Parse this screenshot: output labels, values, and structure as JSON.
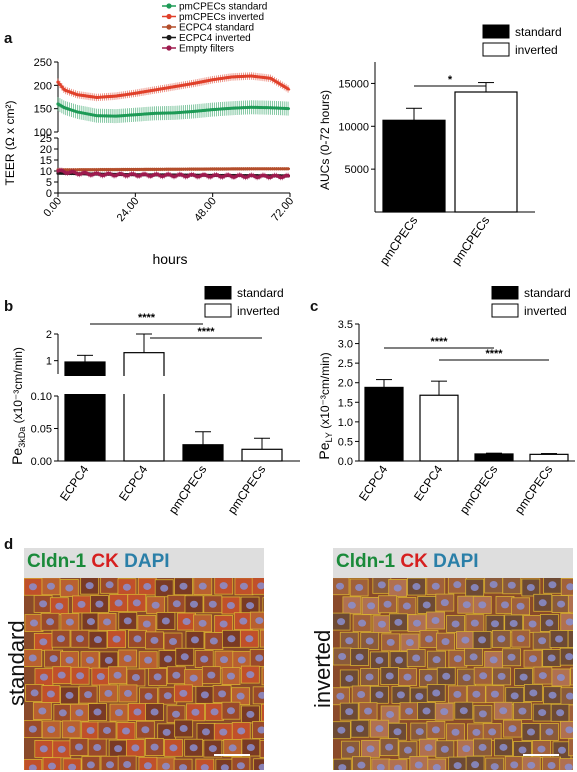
{
  "panel_letters": {
    "a": "a",
    "b": "b",
    "c": "c",
    "d": "d"
  },
  "colors": {
    "pmcpecs_standard": "#1d9a56",
    "pmcpecs_inverted": "#e0402a",
    "ecpc4_standard": "#b34d2a",
    "ecpc4_inverted": "#1a1a1a",
    "empty_filters": "#9e1a4e"
  },
  "chart_data": [
    {
      "id": "teer",
      "type": "line",
      "xlabel": "hours",
      "ylabel": "TEER (Ω x cm²)",
      "x_ticks": [
        "0.00",
        "24.00",
        "48.00",
        "72.00"
      ],
      "xlim": [
        0,
        72
      ],
      "y_upper_ticks": [
        "100",
        "150",
        "200",
        "250"
      ],
      "y_upper_range": [
        100,
        250
      ],
      "y_lower_ticks": [
        "0",
        "5",
        "10",
        "15",
        "20",
        "25"
      ],
      "y_lower_range": [
        0,
        25
      ],
      "legend": [
        "pmCPECs standard",
        "pmCPECs inverted",
        "ECPC4 standard",
        "ECPC4 inverted",
        "Empty filters"
      ],
      "series": [
        {
          "name": "pmCPECs standard",
          "x": [
            0,
            2,
            6,
            12,
            18,
            24,
            30,
            36,
            42,
            48,
            54,
            60,
            66,
            72
          ],
          "y": [
            160,
            152,
            143,
            135,
            134,
            137,
            140,
            141,
            144,
            148,
            151,
            153,
            152,
            150
          ],
          "err": 15
        },
        {
          "name": "pmCPECs inverted",
          "x": [
            0,
            2,
            6,
            12,
            18,
            24,
            30,
            36,
            42,
            48,
            54,
            60,
            66,
            72
          ],
          "y": [
            207,
            190,
            180,
            174,
            177,
            183,
            190,
            197,
            204,
            212,
            218,
            220,
            215,
            190
          ],
          "err": 8
        },
        {
          "name": "ECPC4 standard",
          "x": [
            0,
            12,
            24,
            36,
            48,
            60,
            72
          ],
          "y": [
            10.5,
            10.6,
            10.7,
            10.8,
            10.9,
            11.0,
            11.0
          ],
          "err": 0.8
        },
        {
          "name": "ECPC4 inverted",
          "x": [
            0,
            12,
            24,
            36,
            48,
            60,
            72
          ],
          "y": [
            9.0,
            8.6,
            8.3,
            8.2,
            8.0,
            7.9,
            7.8
          ],
          "err": 0.6
        },
        {
          "name": "Empty filters",
          "x": [
            0,
            6,
            12,
            24,
            36,
            48,
            60,
            72
          ],
          "y": [
            10.0,
            9.0,
            8.5,
            8.2,
            8.0,
            7.8,
            7.6,
            7.5
          ],
          "err": 1.2
        }
      ]
    },
    {
      "id": "auc",
      "type": "bar",
      "ylabel": "AUCs (0-72 hours)",
      "y_ticks": [
        "5000",
        "10000",
        "15000"
      ],
      "ylim": [
        0,
        17500
      ],
      "categories": [
        "pmCPECs",
        "pmCPECs"
      ],
      "values": [
        10700,
        14000
      ],
      "errors": [
        1400,
        1100
      ],
      "fills": [
        "standard",
        "inverted"
      ],
      "legend": [
        "standard",
        "inverted"
      ],
      "significance": "*"
    },
    {
      "id": "pe3kda",
      "type": "bar",
      "ylabel_main": "Pe",
      "ylabel_sub": "3kDa",
      "ylabel_rest": " (x10⁻³cm/min)",
      "y_lower_ticks": [
        "0.00",
        "0.05",
        "0.10"
      ],
      "y_upper_ticks": [
        "1",
        "2"
      ],
      "categories": [
        "ECPC4",
        "ECPC4",
        "pmCPECs",
        "pmCPECs"
      ],
      "values": [
        0.95,
        1.3,
        0.025,
        0.018
      ],
      "errors": [
        0.25,
        0.7,
        0.02,
        0.017
      ],
      "fills": [
        "standard",
        "inverted",
        "standard",
        "inverted"
      ],
      "legend": [
        "standard",
        "inverted"
      ],
      "significance": [
        "****",
        "****"
      ]
    },
    {
      "id": "pely",
      "type": "bar",
      "ylabel_main": "Pe",
      "ylabel_sub": "LY",
      "ylabel_rest": " (x10⁻³cm/min)",
      "y_ticks": [
        "0.0",
        "0.5",
        "1.0",
        "1.5",
        "2.0",
        "2.5",
        "3.0",
        "3.5"
      ],
      "ylim": [
        0,
        3.5
      ],
      "categories": [
        "ECPC4",
        "ECPC4",
        "pmCPECs",
        "pmCPECs"
      ],
      "values": [
        1.88,
        1.68,
        0.18,
        0.17
      ],
      "errors": [
        0.2,
        0.36,
        0.02,
        0.02
      ],
      "fills": [
        "standard",
        "inverted",
        "standard",
        "inverted"
      ],
      "legend": [
        "standard",
        "inverted"
      ],
      "significance": [
        "****",
        "****"
      ]
    }
  ],
  "micrographs": [
    {
      "label": "standard",
      "title_parts": [
        "Cldn-1",
        "CK",
        "DAPI"
      ]
    },
    {
      "label": "inverted",
      "title_parts": [
        "Cldn-1",
        "CK",
        "DAPI"
      ]
    }
  ]
}
